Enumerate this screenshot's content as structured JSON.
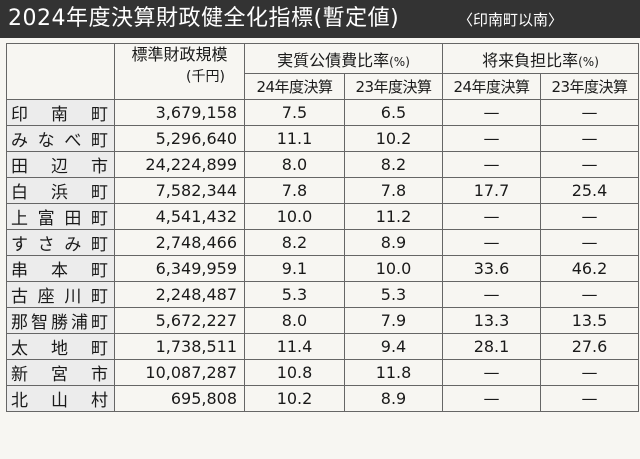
{
  "banner": {
    "title": "2024年度決算財政健全化指標(暫定値)",
    "subtitle": "〈印南町以南〉"
  },
  "headers": {
    "scale": "標準財政規模",
    "scale_unit": "(千円)",
    "ratio1": "実質公債費比率",
    "ratio2": "将来負担比率",
    "pct": "(%)",
    "fy24": "24年度決算",
    "fy23": "23年度決算"
  },
  "rows": [
    {
      "name": "印南町",
      "scale": "3,679,158",
      "r1_24": "7.5",
      "r1_23": "6.5",
      "r2_24": "—",
      "r2_23": "—"
    },
    {
      "name": "みなべ町",
      "scale": "5,296,640",
      "r1_24": "11.1",
      "r1_23": "10.2",
      "r2_24": "—",
      "r2_23": "—"
    },
    {
      "name": "田辺市",
      "scale": "24,224,899",
      "r1_24": "8.0",
      "r1_23": "8.2",
      "r2_24": "—",
      "r2_23": "—"
    },
    {
      "name": "白浜町",
      "scale": "7,582,344",
      "r1_24": "7.8",
      "r1_23": "7.8",
      "r2_24": "17.7",
      "r2_23": "25.4"
    },
    {
      "name": "上富田町",
      "scale": "4,541,432",
      "r1_24": "10.0",
      "r1_23": "11.2",
      "r2_24": "—",
      "r2_23": "—"
    },
    {
      "name": "すさみ町",
      "scale": "2,748,466",
      "r1_24": "8.2",
      "r1_23": "8.9",
      "r2_24": "—",
      "r2_23": "—"
    },
    {
      "name": "串本町",
      "scale": "6,349,959",
      "r1_24": "9.1",
      "r1_23": "10.0",
      "r2_24": "33.6",
      "r2_23": "46.2"
    },
    {
      "name": "古座川町",
      "scale": "2,248,487",
      "r1_24": "5.3",
      "r1_23": "5.3",
      "r2_24": "—",
      "r2_23": "—"
    },
    {
      "name": "那智勝浦町",
      "scale": "5,672,227",
      "r1_24": "8.0",
      "r1_23": "7.9",
      "r2_24": "13.3",
      "r2_23": "13.5"
    },
    {
      "name": "太地町",
      "scale": "1,738,511",
      "r1_24": "11.4",
      "r1_23": "9.4",
      "r2_24": "28.1",
      "r2_23": "27.6"
    },
    {
      "name": "新宮市",
      "scale": "10,087,287",
      "r1_24": "10.8",
      "r1_23": "11.8",
      "r2_24": "—",
      "r2_23": "—"
    },
    {
      "name": "北山村",
      "scale": "695,808",
      "r1_24": "10.2",
      "r1_23": "8.9",
      "r2_24": "—",
      "r2_23": "—"
    }
  ]
}
